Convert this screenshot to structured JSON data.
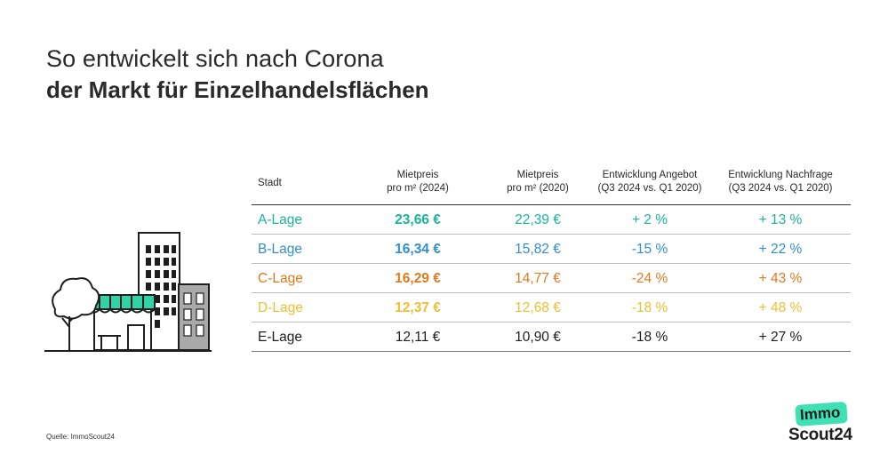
{
  "title": {
    "line1": "So entwickelt sich nach Corona",
    "line2": "der Markt für Einzelhandelsflächen"
  },
  "table": {
    "headers": {
      "city": "Stadt",
      "price2024": [
        "Mietpreis",
        "pro m² (2024)"
      ],
      "price2020": [
        "Mietpreis",
        "pro m² (2020)"
      ],
      "supply": [
        "Entwicklung Angebot",
        "(Q3 2024 vs. Q1 2020)"
      ],
      "demand": [
        "Entwicklung Nachfrage",
        "(Q3 2024 vs. Q1 2020)"
      ]
    },
    "rows": [
      {
        "city": "A-Lage",
        "price2024": "23,66 €",
        "price2020": "22,39 €",
        "supply": "+ 2 %",
        "demand": "+ 13 %",
        "color": "#19b49a"
      },
      {
        "city": "B-Lage",
        "price2024": "16,34 €",
        "price2020": "15,82 €",
        "supply": "-15 %",
        "demand": "+ 22 %",
        "color": "#2f8fcf"
      },
      {
        "city": "C-Lage",
        "price2024": "16,29 €",
        "price2020": "14,77 €",
        "supply": "-24 %",
        "demand": "+ 43 %",
        "color": "#e07a1c"
      },
      {
        "city": "D-Lage",
        "price2024": "12,37 €",
        "price2020": "12,68 €",
        "supply": "-18 %",
        "demand": "+ 48 %",
        "color": "#eebf2e"
      },
      {
        "city": "E-Lage",
        "price2024": "12,11 €",
        "price2020": "10,90 €",
        "supply": "-18 %",
        "demand": "+ 27 %",
        "color": "#1e1e1e"
      }
    ]
  },
  "source": "Quelle: ImmoScout24",
  "logo": {
    "line1": "Immo",
    "line2": "Scout24",
    "badge_color": "#3ee0b4"
  },
  "illustration": {
    "icons": [
      "tree-icon",
      "shop-icon",
      "highrise-icon",
      "office-building-icon"
    ],
    "awning_color": "#2fd3a6"
  }
}
